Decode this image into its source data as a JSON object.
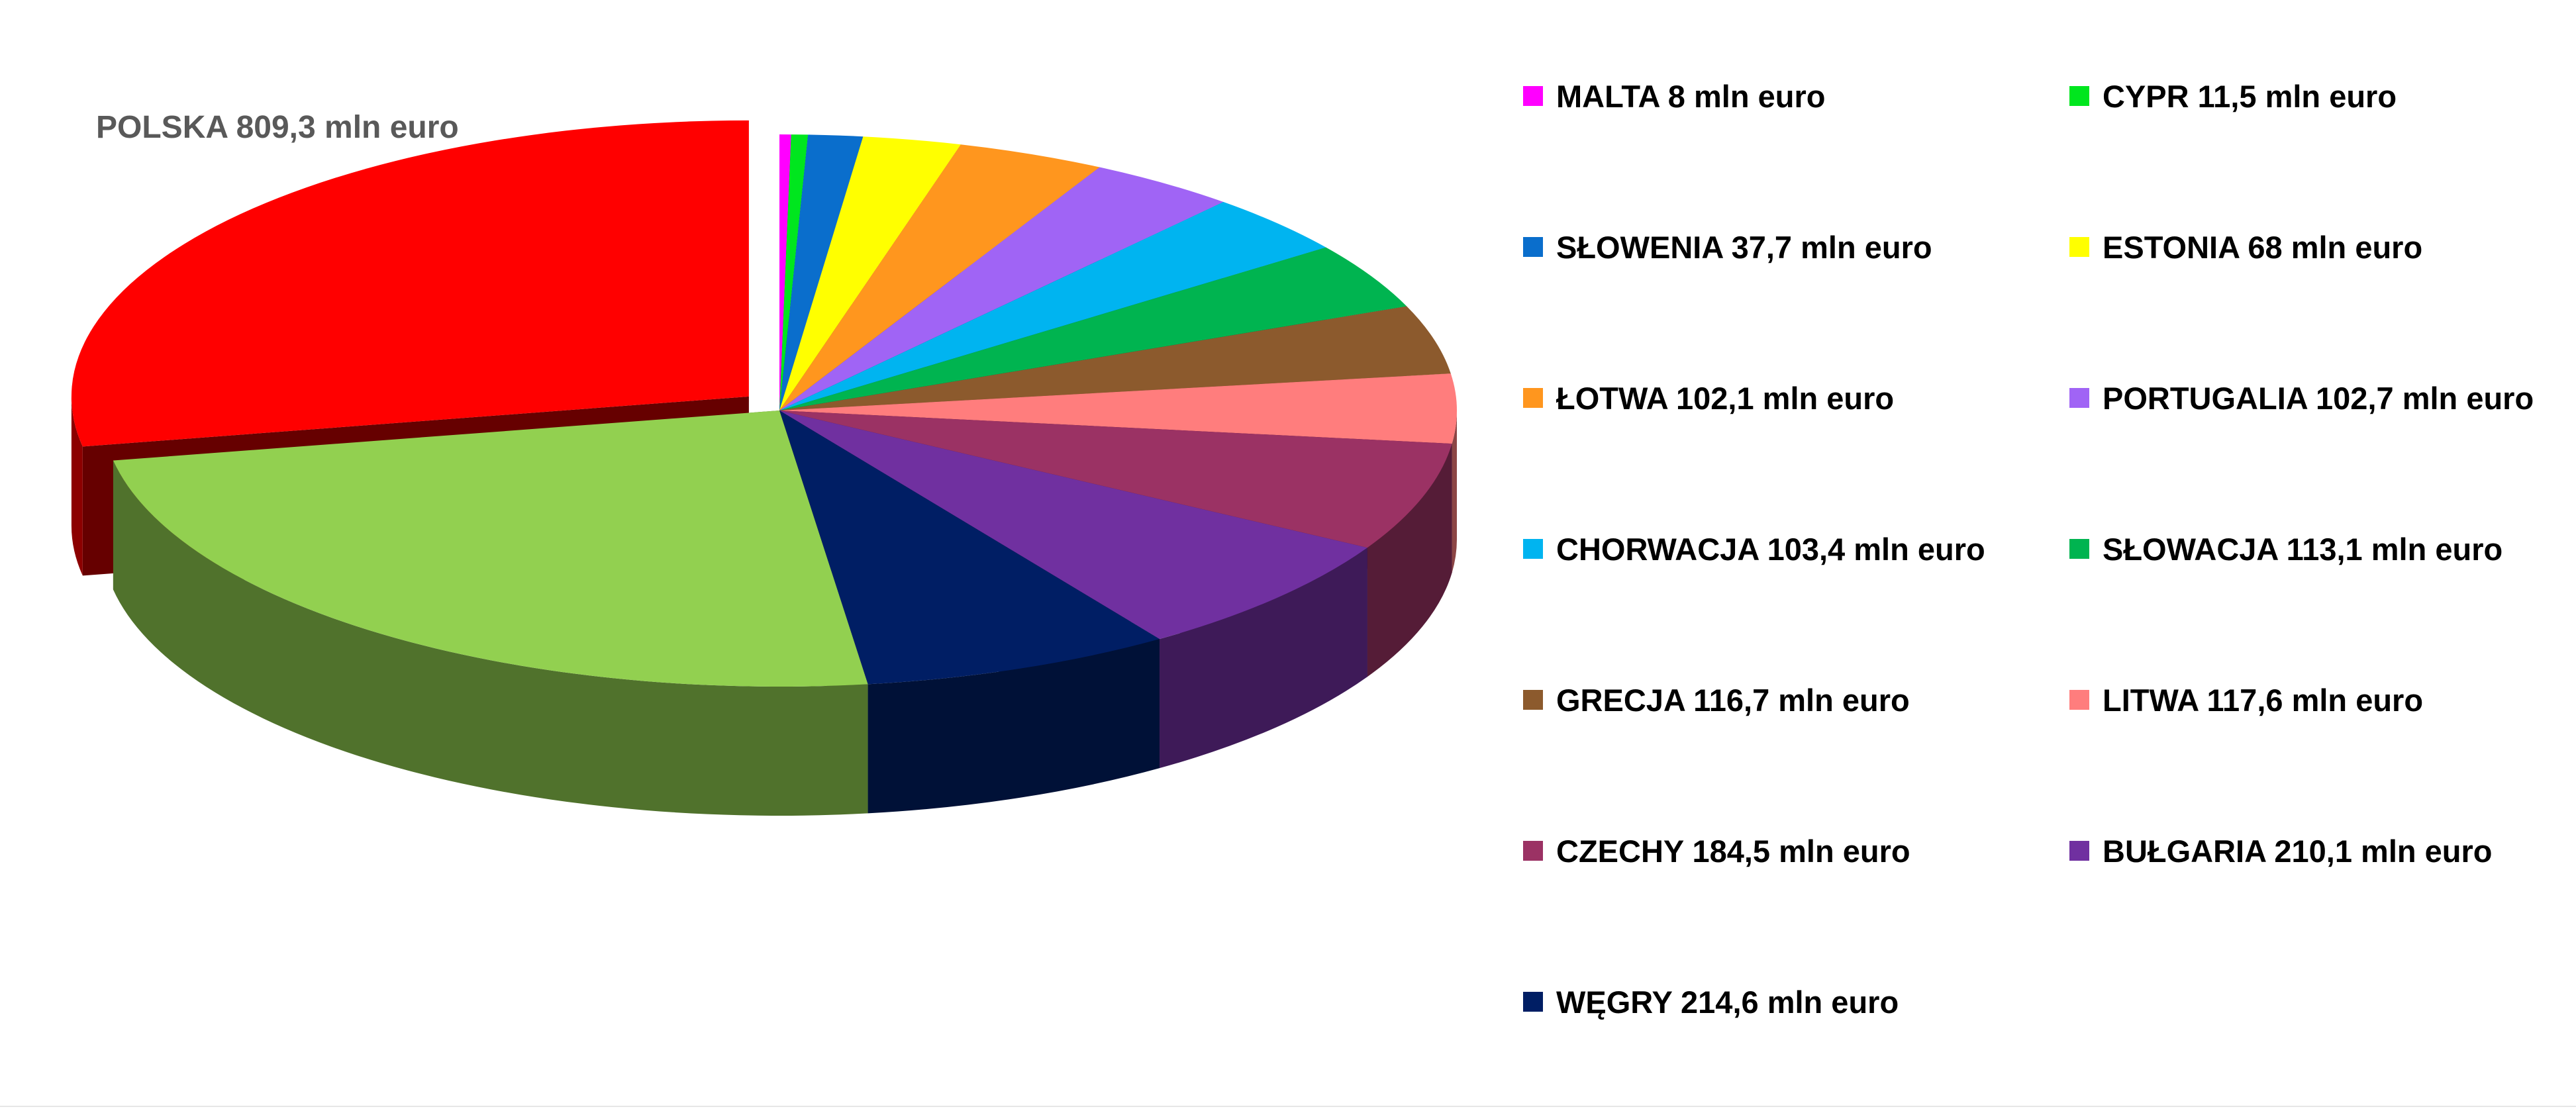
{
  "chart_data": {
    "type": "pie",
    "title": "",
    "style": "3d",
    "exploded_slice": "POLSKA",
    "legend_position": "right",
    "callout": "POLSKA 809,3 mln euro",
    "slices": [
      {
        "label": "MALTA 8 mln euro",
        "value": 8,
        "color": "#FF00FF"
      },
      {
        "label": "CYPR 11,5 mln euro",
        "value": 11.5,
        "color": "#00E61E"
      },
      {
        "label": "SŁOWENIA 37,7 mln euro",
        "value": 37.7,
        "color": "#0A6ECC"
      },
      {
        "label": "ESTONIA 68 mln euro",
        "value": 68,
        "color": "#FFFF00"
      },
      {
        "label": "ŁOTWA 102,1 mln euro",
        "value": 102.1,
        "color": "#FF961E"
      },
      {
        "label": "PORTUGALIA 102,7 mln euro",
        "value": 102.7,
        "color": "#A064F5"
      },
      {
        "label": "CHORWACJA 103,4 mln euro",
        "value": 103.4,
        "color": "#00B4F0"
      },
      {
        "label": "SŁOWACJA 113,1 mln euro",
        "value": 113.1,
        "color": "#00B450"
      },
      {
        "label": "GRECJA 116,7 mln euro",
        "value": 116.7,
        "color": "#8C5A2D"
      },
      {
        "label": "LITWA 117,6 mln euro",
        "value": 117.6,
        "color": "#FF7D7D"
      },
      {
        "label": "CZECHY 184,5 mln euro",
        "value": 184.5,
        "color": "#9B3264"
      },
      {
        "label": "BUŁGARIA 210,1 mln euro",
        "value": 210.1,
        "color": "#7030A0"
      },
      {
        "label": "WĘGRY 214,6 mln euro",
        "value": 214.6,
        "color": "#001E64"
      },
      {
        "label": "",
        "value": 701.6,
        "color": "#92D050"
      },
      {
        "label": "POLSKA 809,3 mln euro",
        "value": 809.3,
        "color": "#FF0000"
      }
    ]
  }
}
